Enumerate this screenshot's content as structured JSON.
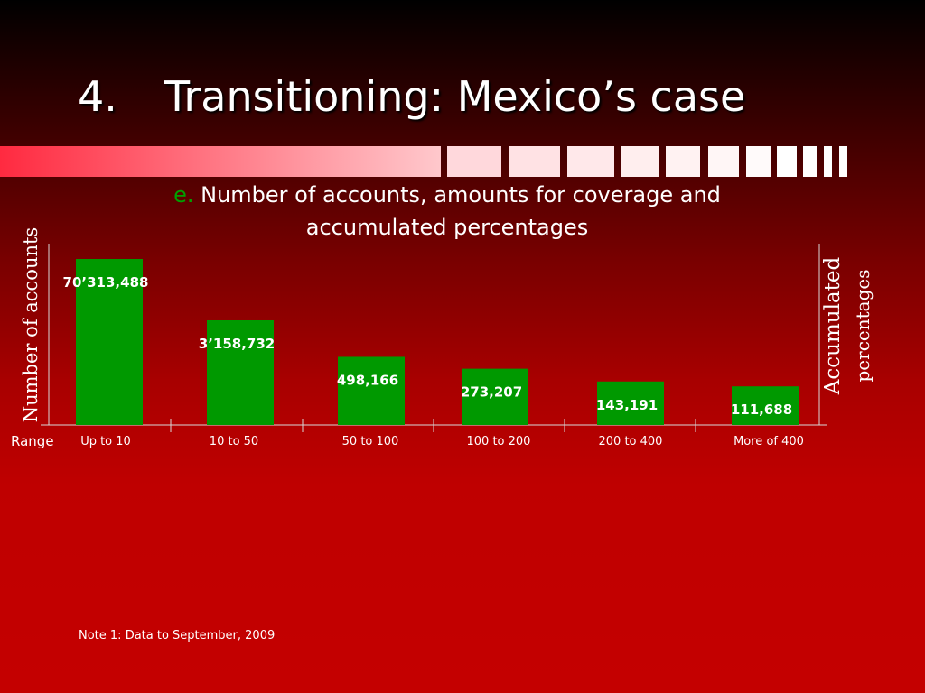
{
  "slide": {
    "title_number": "4.",
    "title_text": "Transitioning: Mexico’s case",
    "subtitle_letter": "e.",
    "subtitle_line1": "Number of accounts, amounts for coverage and",
    "subtitle_line2": "accumulated percentages",
    "range_label": "Range",
    "note": "Note 1: Data to September, 2009"
  },
  "colors": {
    "bar": "#009900",
    "subtitle_letter": "#00a000",
    "deco_light": "#fbe3e3"
  },
  "chart_data": {
    "type": "bar",
    "title": "",
    "ylabel": "Number of accounts",
    "y2label_line1": "Accumulated",
    "y2label_line2": "percentages",
    "xlabel": "Range",
    "categories": [
      "Up to 10",
      "10 to 50",
      "50 to 100",
      "100 to 200",
      "200 to 400",
      "More of 400"
    ],
    "values": [
      70313488,
      3158732,
      498166,
      273207,
      143191,
      111688
    ],
    "data_labels": [
      "70’313,488",
      "3’158,732",
      "498,166",
      "273,207",
      "143,191",
      "111,688"
    ],
    "y_scale": "non-linear (bar heights not proportional to values)",
    "grid": false,
    "legend": "none"
  }
}
